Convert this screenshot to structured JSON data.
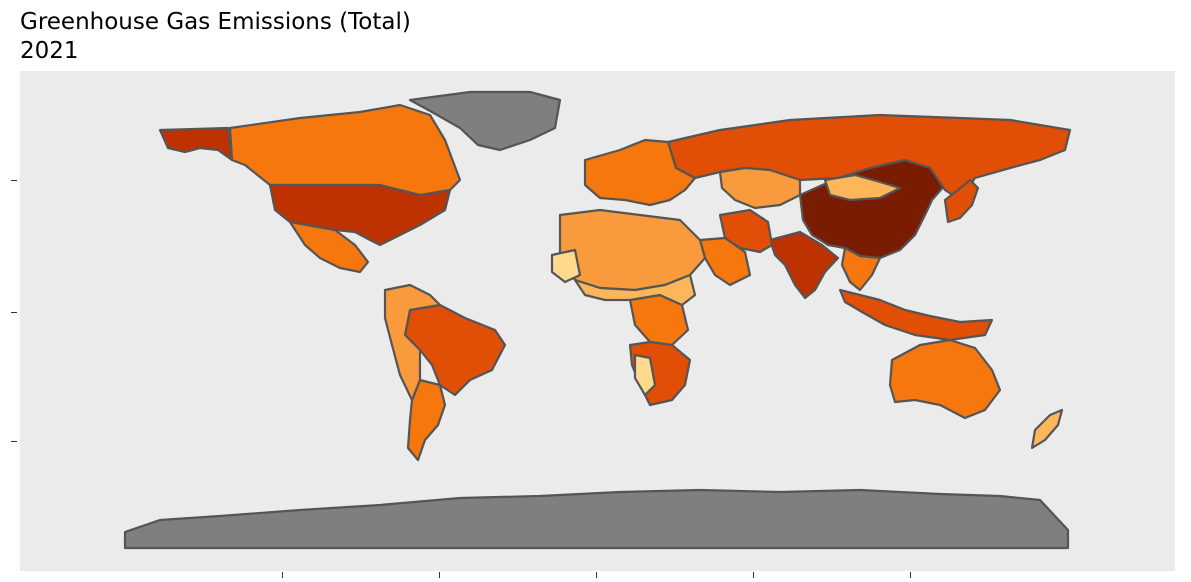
{
  "title": {
    "line1": "Greenhouse Gas Emissions (Total)",
    "line2": "2021"
  },
  "colors": {
    "panel": "#ebebeb",
    "border": "#555555",
    "no_data": "#7f7f7f",
    "very_high": "#7a1c02",
    "high": "#bd3200",
    "upper_mid": "#e04f05",
    "mid": "#f5770d",
    "lower_mid": "#f99b3c",
    "low": "#fdb75a",
    "very_low": "#fed98e"
  },
  "map_data": {
    "type": "choropleth",
    "regions": [
      {
        "name": "China",
        "level": "very_high"
      },
      {
        "name": "United States",
        "level": "high"
      },
      {
        "name": "Alaska",
        "level": "high"
      },
      {
        "name": "India",
        "level": "high"
      },
      {
        "name": "Russia",
        "level": "upper_mid"
      },
      {
        "name": "Brazil",
        "level": "upper_mid"
      },
      {
        "name": "Indonesia",
        "level": "upper_mid"
      },
      {
        "name": "Iran",
        "level": "upper_mid"
      },
      {
        "name": "Japan",
        "level": "upper_mid"
      },
      {
        "name": "Canada",
        "level": "mid"
      },
      {
        "name": "Australia",
        "level": "mid"
      },
      {
        "name": "Mexico",
        "level": "mid"
      },
      {
        "name": "Argentina",
        "level": "mid"
      },
      {
        "name": "Saudi Arabia",
        "level": "mid"
      },
      {
        "name": "Congo DR",
        "level": "mid"
      },
      {
        "name": "Kazakhstan",
        "level": "lower_mid"
      },
      {
        "name": "Europe",
        "level": "mid"
      },
      {
        "name": "Southeast Asia",
        "level": "mid"
      },
      {
        "name": "Northern Africa",
        "level": "lower_mid"
      },
      {
        "name": "Southern Africa",
        "level": "upper_mid"
      },
      {
        "name": "Andean South America",
        "level": "lower_mid"
      },
      {
        "name": "Mongolia",
        "level": "low"
      },
      {
        "name": "Sahel",
        "level": "low"
      },
      {
        "name": "Namibia",
        "level": "very_low"
      },
      {
        "name": "New Zealand",
        "level": "low"
      },
      {
        "name": "Mauritania",
        "level": "very_low"
      },
      {
        "name": "Greenland",
        "level": "no_data"
      },
      {
        "name": "Antarctica",
        "level": "no_data"
      }
    ]
  }
}
